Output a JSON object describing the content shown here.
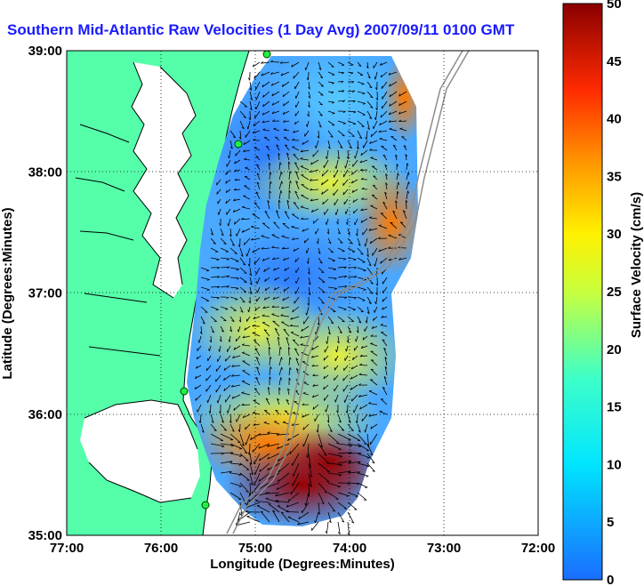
{
  "title": "Southern Mid-Atlantic Raw Velocities (1 Day Avg) 2007/09/11 0100 GMT",
  "chart_data": {
    "type": "heatmap",
    "x_label": "Longitude (Degrees:Minutes)",
    "y_label": "Latitude (Degrees:Minutes)",
    "x_ticks": [
      "77:00",
      "76:00",
      "75:00",
      "74:00",
      "73:00",
      "72:00"
    ],
    "y_ticks": [
      "39:00",
      "38:00",
      "37:00",
      "36:00",
      "35:00"
    ],
    "x_range": [
      -77,
      -72
    ],
    "y_range": [
      35,
      39
    ],
    "grid": true,
    "colorbar": {
      "label": "Surface Velocity (cm/s)",
      "ticks": [
        "50",
        "45",
        "40",
        "35",
        "30",
        "25",
        "20",
        "15",
        "10",
        "5",
        "0"
      ],
      "range": [
        0,
        50
      ]
    },
    "land_color": "#55ffaa",
    "speed_regions": [
      {
        "lon": -74.7,
        "lat": 38.3,
        "speed": 8
      },
      {
        "lon": -74.2,
        "lat": 37.1,
        "speed": 10
      },
      {
        "lon": -74.9,
        "lat": 37.7,
        "speed": 12
      },
      {
        "lon": -73.9,
        "lat": 37.5,
        "speed": 32
      },
      {
        "lon": -73.5,
        "lat": 38.7,
        "speed": 38
      },
      {
        "lon": -74.5,
        "lat": 36.6,
        "speed": 25
      },
      {
        "lon": -74.8,
        "lat": 36.1,
        "speed": 28
      },
      {
        "lon": -74.3,
        "lat": 35.5,
        "speed": 50
      }
    ]
  }
}
